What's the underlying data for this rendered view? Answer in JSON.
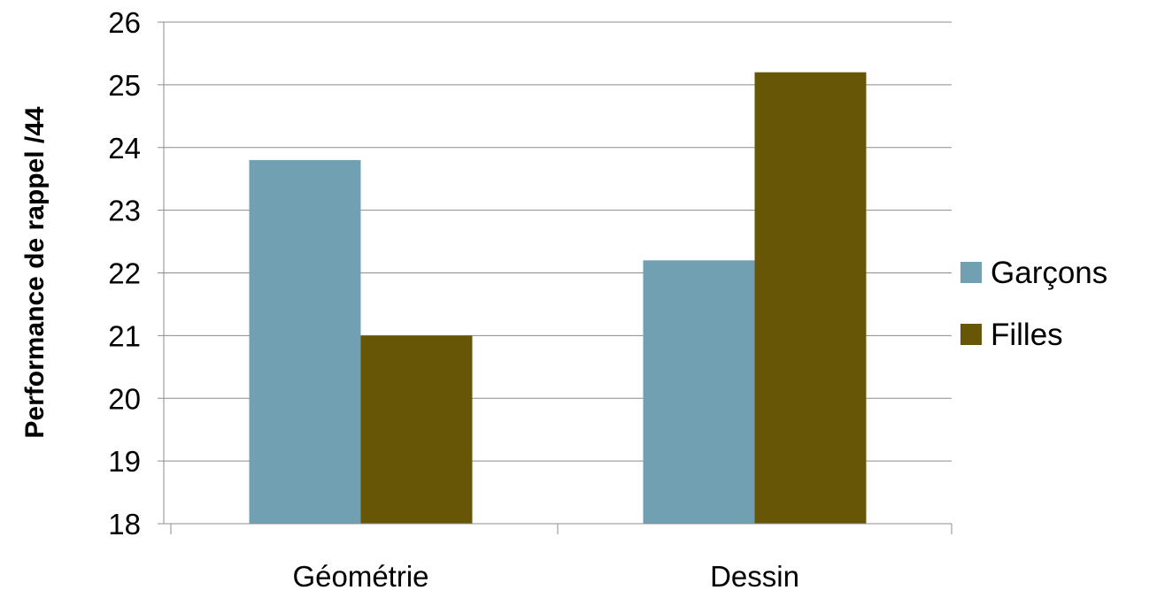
{
  "chart_data": {
    "type": "bar",
    "title": "",
    "xlabel": "",
    "ylabel": "Performance de rappel /44",
    "ylim": [
      18,
      26
    ],
    "yticks": [
      18,
      19,
      20,
      21,
      22,
      23,
      24,
      25,
      26
    ],
    "grid": true,
    "legend_position": "right",
    "categories": [
      "Géométrie",
      "Dessin"
    ],
    "series": [
      {
        "name": "Garçons",
        "color": "#70A0B2",
        "values": [
          23.8,
          22.2
        ]
      },
      {
        "name": "Filles",
        "color": "#665606",
        "values": [
          21.0,
          25.2
        ]
      }
    ]
  }
}
